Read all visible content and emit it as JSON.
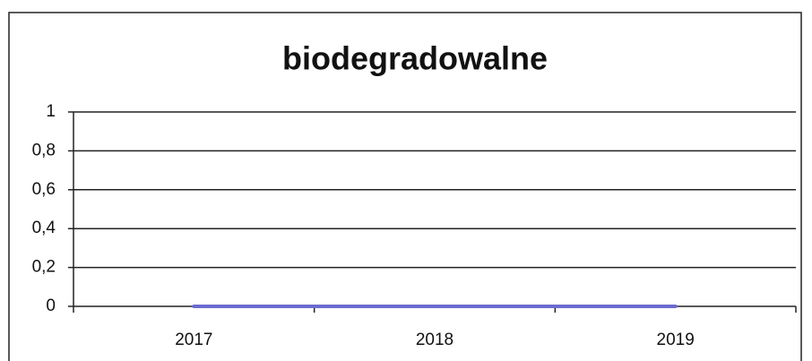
{
  "chart_data": {
    "type": "line",
    "title": "biodegradowalne",
    "categories": [
      "2017",
      "2018",
      "2019"
    ],
    "series": [
      {
        "name": "biodegradowalne",
        "color": "#6b6bd0",
        "values": [
          0,
          0,
          0
        ]
      }
    ],
    "ylim": [
      0,
      1
    ],
    "yticks": [
      0,
      {
        "value": 0.2,
        "label": "0,2"
      },
      {
        "value": 0.4,
        "label": "0,4"
      },
      {
        "value": 0.6,
        "label": "0,6"
      },
      {
        "value": 0.8,
        "label": "0,8"
      },
      1
    ],
    "grid": true
  }
}
